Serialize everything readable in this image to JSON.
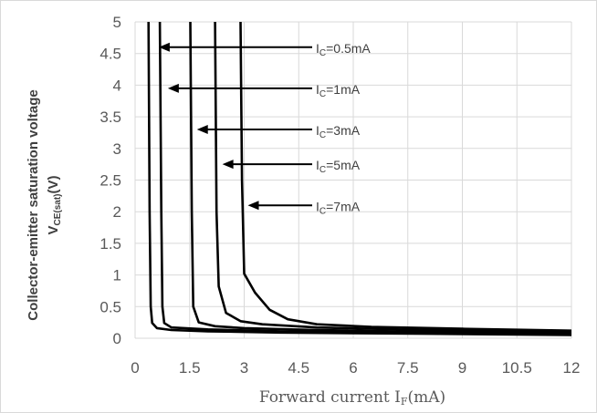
{
  "chart_data": {
    "type": "line",
    "xlabel": "Forward current ",
    "xlabel_sym": "I",
    "xlabel_sub": "F",
    "xlabel_unit": "(mA)",
    "ylabel_line1": "Collector-emitter saturation voltage",
    "ylabel_sym": "V",
    "ylabel_sub": "CE(sat)",
    "ylabel_unit": "(V)",
    "xlim": [
      0,
      12
    ],
    "ylim": [
      0,
      5
    ],
    "x_ticks": [
      "0",
      "1.5",
      "3",
      "4.5",
      "6",
      "7.5",
      "9",
      "10.5",
      "12"
    ],
    "y_ticks": [
      "0",
      "0.5",
      "1",
      "1.5",
      "2",
      "2.5",
      "3",
      "3.5",
      "4",
      "4.5",
      "5"
    ],
    "grid": true,
    "series": [
      {
        "name": "IC=0.5mA",
        "label": {
          "sym": "I",
          "sub": "C",
          "value": "=0.5mA"
        },
        "arrow_at": [
          0.55,
          4.6
        ],
        "points": [
          [
            0.37,
            5.0
          ],
          [
            0.4,
            2.0
          ],
          [
            0.43,
            0.5
          ],
          [
            0.47,
            0.24
          ],
          [
            0.6,
            0.16
          ],
          [
            1.0,
            0.13
          ],
          [
            2.0,
            0.11
          ],
          [
            4.0,
            0.09
          ],
          [
            8.0,
            0.07
          ],
          [
            12.0,
            0.05
          ]
        ]
      },
      {
        "name": "IC=1mA",
        "label": {
          "sym": "I",
          "sub": "C",
          "value": "=1mA"
        },
        "arrow_at": [
          0.8,
          3.95
        ],
        "points": [
          [
            0.68,
            5.0
          ],
          [
            0.72,
            2.0
          ],
          [
            0.75,
            0.5
          ],
          [
            0.8,
            0.24
          ],
          [
            1.0,
            0.17
          ],
          [
            2.0,
            0.14
          ],
          [
            4.0,
            0.11
          ],
          [
            8.0,
            0.08
          ],
          [
            12.0,
            0.06
          ]
        ]
      },
      {
        "name": "IC=3mA",
        "label": {
          "sym": "I",
          "sub": "C",
          "value": "=3mA"
        },
        "arrow_at": [
          1.6,
          3.3
        ],
        "points": [
          [
            1.52,
            5.0
          ],
          [
            1.56,
            2.0
          ],
          [
            1.6,
            0.5
          ],
          [
            1.75,
            0.25
          ],
          [
            2.2,
            0.19
          ],
          [
            3.0,
            0.16
          ],
          [
            5.0,
            0.13
          ],
          [
            8.0,
            0.1
          ],
          [
            12.0,
            0.08
          ]
        ]
      },
      {
        "name": "IC=5mA",
        "label": {
          "sym": "I",
          "sub": "C",
          "value": "=5mA"
        },
        "arrow_at": [
          2.3,
          2.75
        ],
        "points": [
          [
            2.2,
            5.0
          ],
          [
            2.24,
            2.0
          ],
          [
            2.3,
            0.82
          ],
          [
            2.5,
            0.4
          ],
          [
            2.9,
            0.27
          ],
          [
            3.5,
            0.22
          ],
          [
            5.0,
            0.17
          ],
          [
            8.0,
            0.13
          ],
          [
            12.0,
            0.1
          ]
        ]
      },
      {
        "name": "IC=7mA",
        "label": {
          "sym": "I",
          "sub": "C",
          "value": "=7mA"
        },
        "arrow_at": [
          3.0,
          2.1
        ],
        "points": [
          [
            2.9,
            5.0
          ],
          [
            2.94,
            2.5
          ],
          [
            3.0,
            1.02
          ],
          [
            3.3,
            0.72
          ],
          [
            3.7,
            0.45
          ],
          [
            4.2,
            0.3
          ],
          [
            5.0,
            0.22
          ],
          [
            6.5,
            0.18
          ],
          [
            9.0,
            0.15
          ],
          [
            12.0,
            0.12
          ]
        ]
      }
    ]
  }
}
